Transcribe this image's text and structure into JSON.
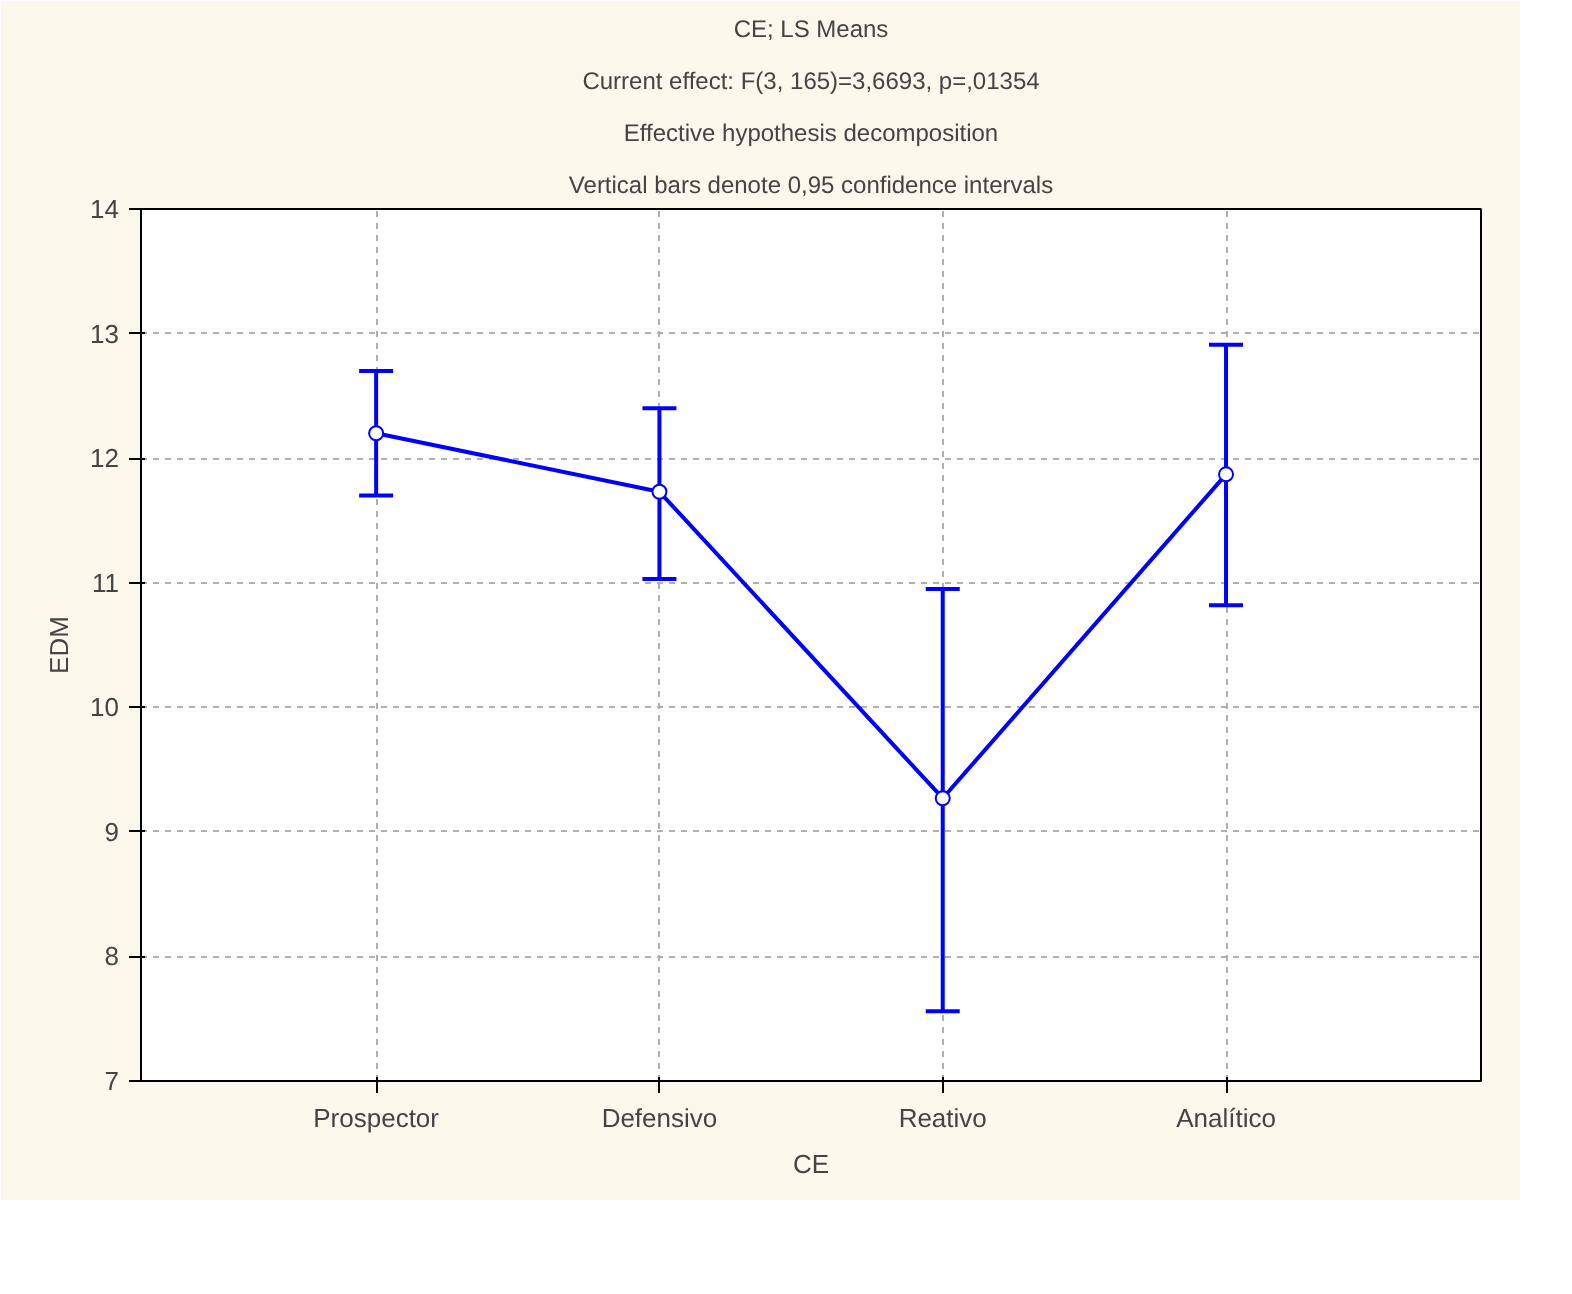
{
  "chart_data": {
    "type": "line",
    "title": "CE; LS Means",
    "subtitle": "Current effect: F(3, 165)=3,6693, p=,01354",
    "annotations": [
      "Effective hypothesis decomposition",
      "Vertical bars denote 0,95 confidence intervals"
    ],
    "xlabel": "CE",
    "ylabel": "EDM",
    "categories": [
      "Prospector",
      "Defensivo",
      "Reativo",
      "Analítico"
    ],
    "series": [
      {
        "color": "#0000ff",
        "values": [
          12.2,
          11.73,
          9.27,
          11.87
        ],
        "errors": [
          [
            11.7,
            12.7
          ],
          [
            11.03,
            12.4
          ],
          [
            7.56,
            10.95
          ],
          [
            10.82,
            12.91
          ]
        ]
      }
    ],
    "ylim": [
      7,
      14
    ],
    "yticks": [
      7,
      8,
      9,
      10,
      11,
      12,
      13,
      14
    ],
    "grid": true,
    "marker": "circle",
    "line_style": "solid"
  }
}
